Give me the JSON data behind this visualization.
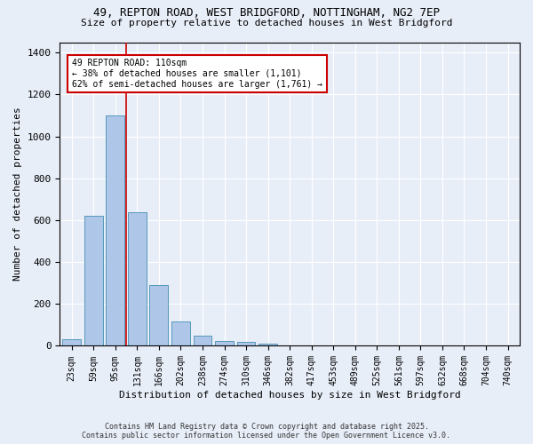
{
  "title_line1": "49, REPTON ROAD, WEST BRIDGFORD, NOTTINGHAM, NG2 7EP",
  "title_line2": "Size of property relative to detached houses in West Bridgford",
  "xlabel": "Distribution of detached houses by size in West Bridgford",
  "ylabel": "Number of detached properties",
  "categories": [
    "23sqm",
    "59sqm",
    "95sqm",
    "131sqm",
    "166sqm",
    "202sqm",
    "238sqm",
    "274sqm",
    "310sqm",
    "346sqm",
    "382sqm",
    "417sqm",
    "453sqm",
    "489sqm",
    "525sqm",
    "561sqm",
    "597sqm",
    "632sqm",
    "668sqm",
    "704sqm",
    "740sqm"
  ],
  "values": [
    30,
    620,
    1100,
    640,
    290,
    115,
    50,
    25,
    20,
    12,
    0,
    0,
    0,
    0,
    0,
    0,
    0,
    0,
    0,
    0,
    0
  ],
  "bar_color": "#aec6e8",
  "bar_edge_color": "#5599bb",
  "vline_color": "#cc0000",
  "vline_xindex": 2.5,
  "annotation_text": "49 REPTON ROAD: 110sqm\n← 38% of detached houses are smaller (1,101)\n62% of semi-detached houses are larger (1,761) →",
  "annotation_box_color": "#ffffff",
  "annotation_box_edgecolor": "#cc0000",
  "ylim": [
    0,
    1450
  ],
  "yticks": [
    0,
    200,
    400,
    600,
    800,
    1000,
    1200,
    1400
  ],
  "bg_color": "#e8eef8",
  "grid_color": "#ffffff",
  "footer_line1": "Contains HM Land Registry data © Crown copyright and database right 2025.",
  "footer_line2": "Contains public sector information licensed under the Open Government Licence v3.0."
}
